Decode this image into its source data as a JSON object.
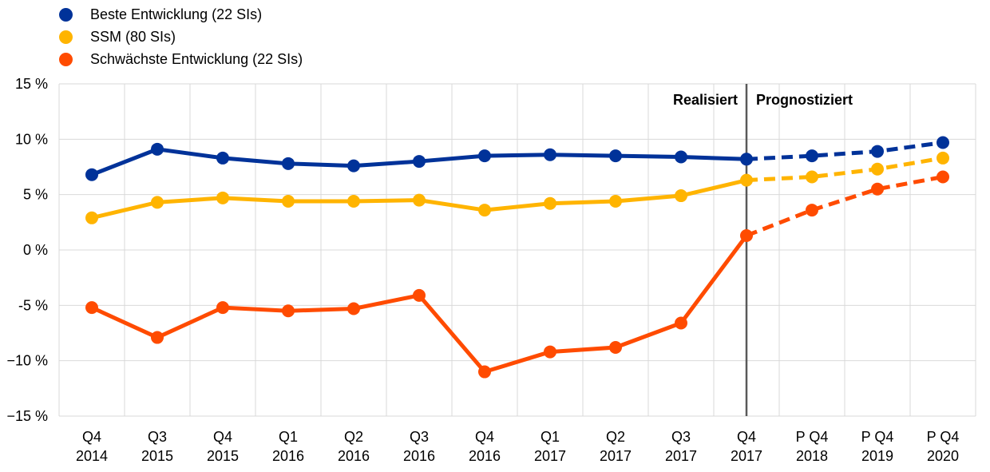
{
  "chart_data": {
    "type": "line",
    "categories": [
      [
        "Q4",
        "2014"
      ],
      [
        "Q3",
        "2015"
      ],
      [
        "Q4",
        "2015"
      ],
      [
        "Q1",
        "2016"
      ],
      [
        "Q2",
        "2016"
      ],
      [
        "Q3",
        "2016"
      ],
      [
        "Q4",
        "2016"
      ],
      [
        "Q1",
        "2017"
      ],
      [
        "Q2",
        "2017"
      ],
      [
        "Q3",
        "2017"
      ],
      [
        "Q4",
        "2017"
      ],
      [
        "P Q4",
        "2018"
      ],
      [
        "P Q4",
        "2019"
      ],
      [
        "P Q4",
        "2020"
      ]
    ],
    "ylim": [
      -15,
      15
    ],
    "yticks": [
      15,
      10,
      5,
      0,
      -5,
      -10,
      -15
    ],
    "ytick_labels": [
      "15 %",
      "10 %",
      "5 %",
      "0 %",
      "-5 %",
      "−10 %",
      "−15 %"
    ],
    "grid": true,
    "legend_position": "top-left",
    "series": [
      {
        "name": "Beste Entwicklung (22 SIs)",
        "color": "#003299",
        "values": [
          6.8,
          9.1,
          8.3,
          7.8,
          7.6,
          8.0,
          8.5,
          8.6,
          8.5,
          8.4,
          8.2,
          8.5,
          8.9,
          9.7
        ]
      },
      {
        "name": "SSM (80 SIs)",
        "color": "#FFB400",
        "values": [
          2.9,
          4.3,
          4.7,
          4.4,
          4.4,
          4.5,
          3.6,
          4.2,
          4.4,
          4.9,
          6.3,
          6.6,
          7.3,
          8.3
        ]
      },
      {
        "name": "Schwächste Entwicklung (22 SIs)",
        "color": "#FF4B00",
        "values": [
          -5.2,
          -7.9,
          -5.2,
          -5.5,
          -5.3,
          -4.1,
          -11.0,
          -9.2,
          -8.8,
          -6.6,
          1.3,
          3.6,
          5.5,
          6.6
        ]
      }
    ],
    "forecast_start_index": 10,
    "divider_labels": {
      "left": "Realisiert",
      "right": "Prognostiziert"
    }
  }
}
